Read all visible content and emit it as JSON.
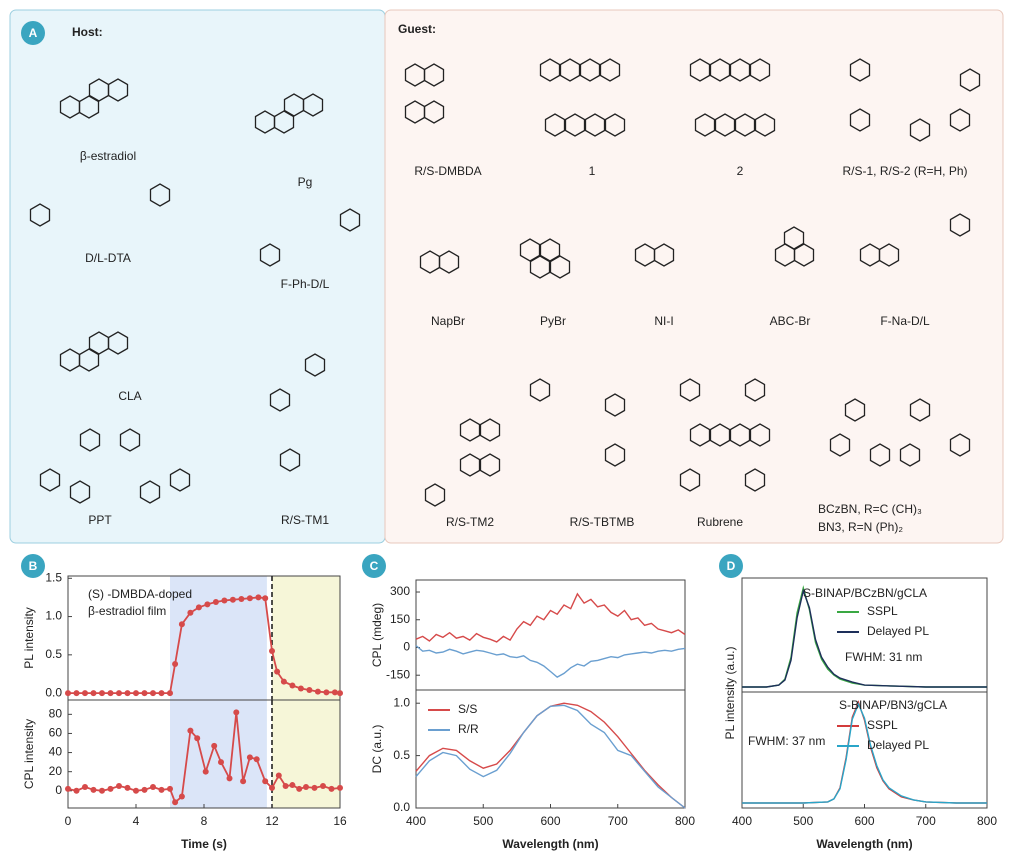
{
  "panel_a": {
    "label": "A",
    "host": {
      "title": "Host:",
      "molecules": [
        "β-estradiol",
        "Pg",
        "D/L-DTA",
        "F-Ph-D/L",
        "CLA",
        "PPT",
        "R/S-TM1"
      ]
    },
    "guest": {
      "title": "Guest:",
      "molecules": [
        "R/S-DMBDA",
        "1",
        "2",
        "R/S-1, R/S-2 (R=H, Ph)",
        "NapBr",
        "PyBr",
        "NI-I",
        "ABC-Br",
        "F-Na-D/L",
        "R/S-TM2",
        "R/S-TBTMB",
        "Rubrene",
        "BCzBN, R=C (CH)₃",
        "BN3, R=N (Ph)₂"
      ]
    }
  },
  "chart_data": [
    {
      "type": "line",
      "panel": "B",
      "ylabel": "PL intensity",
      "annotation": [
        "(S) -DMBDA-doped",
        "β-estradiol film"
      ],
      "markers": true,
      "x": [
        0,
        0.5,
        1,
        1.5,
        2,
        2.5,
        3,
        3.5,
        4,
        4.5,
        5,
        5.5,
        6,
        6.3,
        6.7,
        7.2,
        7.7,
        8.2,
        8.7,
        9.2,
        9.7,
        10.2,
        10.7,
        11.2,
        11.6,
        12,
        12.3,
        12.7,
        13.2,
        13.7,
        14.2,
        14.7,
        15.2,
        15.7,
        16
      ],
      "series": [
        {
          "color": "#d64a4a",
          "values": [
            0,
            0,
            0,
            0,
            0,
            0,
            0,
            0,
            0,
            0,
            0,
            0,
            0,
            0.38,
            0.9,
            1.05,
            1.12,
            1.16,
            1.19,
            1.21,
            1.22,
            1.23,
            1.24,
            1.25,
            1.24,
            0.55,
            0.28,
            0.15,
            0.1,
            0.06,
            0.04,
            0.02,
            0.01,
            0.01,
            0
          ]
        }
      ],
      "xlim": [
        0,
        16
      ],
      "ylim": [
        -0.09,
        1.53
      ],
      "yticks": [
        {
          "value": 0,
          "label": "0.0"
        },
        0.5,
        {
          "value": 1,
          "label": "1.0"
        },
        1.5
      ],
      "shaded_regions": [
        {
          "x": [
            6,
            11.7
          ],
          "color": "#dbe5f8"
        },
        {
          "x": [
            12,
            16
          ],
          "color": "#f6f6d8"
        }
      ],
      "vline_x": 12
    },
    {
      "type": "line",
      "ylabel": "CPL intensity",
      "xlabel": "Time (s)",
      "markers": true,
      "x": [
        0,
        0.5,
        1,
        1.5,
        2,
        2.5,
        3,
        3.5,
        4,
        4.5,
        5,
        5.5,
        6,
        6.3,
        6.7,
        7.2,
        7.6,
        8.1,
        8.6,
        9,
        9.5,
        9.9,
        10.3,
        10.7,
        11.1,
        11.6,
        12,
        12.4,
        12.8,
        13.2,
        13.6,
        14,
        14.5,
        15,
        15.5,
        16
      ],
      "series": [
        {
          "color": "#d64a4a",
          "values": [
            2,
            0,
            4,
            1,
            0,
            2,
            5,
            3,
            0,
            1,
            4,
            1,
            2,
            -12,
            -6,
            63,
            55,
            20,
            47,
            30,
            13,
            82,
            10,
            35,
            33,
            10,
            3,
            16,
            5,
            6,
            2,
            4,
            3,
            5,
            2,
            3
          ]
        }
      ],
      "xlim": [
        0,
        16
      ],
      "ylim": [
        -18,
        95
      ],
      "xticks": [
        0,
        4,
        8,
        12,
        16
      ],
      "yticks": [
        0,
        20,
        40,
        60,
        80
      ],
      "shaded_regions": [
        {
          "x": [
            6,
            11.7
          ],
          "color": "#dbe5f8"
        },
        {
          "x": [
            12,
            16
          ],
          "color": "#f6f6d8"
        }
      ],
      "vline_x": 12
    },
    {
      "type": "line",
      "panel": "C",
      "ylabel": "CPL (mdeg)",
      "x": [
        400,
        410,
        420,
        430,
        440,
        450,
        460,
        470,
        480,
        490,
        500,
        510,
        520,
        530,
        540,
        550,
        560,
        570,
        580,
        590,
        600,
        610,
        620,
        630,
        640,
        650,
        660,
        670,
        680,
        690,
        700,
        710,
        720,
        730,
        740,
        750,
        760,
        770,
        780,
        790,
        800
      ],
      "series": [
        {
          "color": "#d64a4a",
          "values": [
            45,
            60,
            35,
            70,
            55,
            80,
            50,
            60,
            40,
            75,
            55,
            45,
            30,
            60,
            40,
            100,
            140,
            120,
            170,
            150,
            200,
            180,
            230,
            210,
            290,
            240,
            260,
            220,
            230,
            190,
            170,
            200,
            150,
            160,
            120,
            130,
            100,
            90,
            80,
            95,
            70
          ]
        },
        {
          "color": "#6a9fd0",
          "values": [
            10,
            -20,
            -15,
            -30,
            -25,
            -10,
            -20,
            -35,
            -25,
            -15,
            -20,
            -30,
            -40,
            -35,
            -50,
            -55,
            -45,
            -70,
            -80,
            -100,
            -130,
            -160,
            -140,
            -110,
            -90,
            -100,
            -75,
            -70,
            -60,
            -50,
            -55,
            -40,
            -35,
            -30,
            -25,
            -30,
            -20,
            -15,
            -20,
            -10,
            -5
          ]
        }
      ],
      "xlim": [
        400,
        800
      ],
      "ylim": [
        -230,
        365
      ],
      "yticks": [
        -150,
        0,
        150,
        300
      ]
    },
    {
      "type": "line",
      "ylabel": "DC (a.u.)",
      "xlabel": "Wavelength (nm)",
      "legend": "upper left",
      "x": [
        400,
        420,
        440,
        460,
        480,
        500,
        520,
        540,
        560,
        580,
        600,
        620,
        640,
        660,
        680,
        700,
        720,
        740,
        760,
        780,
        800
      ],
      "series": [
        {
          "name": "S/S",
          "color": "#d64a4a",
          "values": [
            0.35,
            0.5,
            0.57,
            0.55,
            0.45,
            0.38,
            0.42,
            0.55,
            0.72,
            0.88,
            0.97,
            1.0,
            0.98,
            0.92,
            0.82,
            0.68,
            0.52,
            0.36,
            0.22,
            0.1,
            0.0
          ]
        },
        {
          "name": "R/R",
          "color": "#6a9fd0",
          "values": [
            0.3,
            0.45,
            0.53,
            0.5,
            0.37,
            0.3,
            0.36,
            0.52,
            0.72,
            0.88,
            0.97,
            0.98,
            0.93,
            0.8,
            0.72,
            0.55,
            0.5,
            0.35,
            0.2,
            0.1,
            0.0
          ]
        }
      ],
      "xlim": [
        400,
        800
      ],
      "ylim": [
        0,
        1.126
      ],
      "xticks": [
        400,
        500,
        600,
        700,
        800
      ],
      "yticks": [
        {
          "value": 0,
          "label": "0.0"
        },
        0.5,
        {
          "value": 1,
          "label": "1.0"
        }
      ]
    },
    {
      "type": "line",
      "panel": "D",
      "title": "S-BINAP/BCzBN/gCLA",
      "annotation": [
        "FWHM: 31 nm"
      ],
      "ylabel": "PL intensity (a.u.)",
      "legend": "upper right",
      "x": [
        400,
        440,
        460,
        470,
        480,
        490,
        500,
        510,
        520,
        530,
        540,
        550,
        560,
        580,
        600,
        650,
        700,
        800
      ],
      "series": [
        {
          "name": "SSPL",
          "color": "#3aa843",
          "values": [
            0,
            0,
            0.02,
            0.08,
            0.3,
            0.75,
            1.0,
            0.78,
            0.45,
            0.28,
            0.18,
            0.12,
            0.08,
            0.04,
            0.02,
            0.01,
            0,
            0
          ]
        },
        {
          "name": "Delayed PL",
          "color": "#1d2f5a",
          "values": [
            0,
            0,
            0.02,
            0.07,
            0.27,
            0.7,
            0.97,
            0.8,
            0.48,
            0.3,
            0.2,
            0.13,
            0.09,
            0.05,
            0.02,
            0.01,
            0,
            0
          ]
        }
      ],
      "xlim": [
        400,
        800
      ],
      "ylim": [
        -0.05,
        1.1
      ]
    },
    {
      "type": "line",
      "title": "S-BINAP/BN3/gCLA",
      "annotation": [
        "FWHM: 37 nm"
      ],
      "xlabel": "Wavelength (nm)",
      "legend": "upper right",
      "x": [
        400,
        500,
        540,
        550,
        560,
        570,
        580,
        590,
        600,
        610,
        620,
        630,
        640,
        660,
        680,
        700,
        750,
        800
      ],
      "series": [
        {
          "name": "SSPL",
          "color": "#d33b3b",
          "values": [
            0,
            0,
            0.01,
            0.04,
            0.15,
            0.45,
            0.85,
            1.0,
            0.82,
            0.55,
            0.35,
            0.22,
            0.14,
            0.06,
            0.03,
            0.01,
            0,
            0
          ]
        },
        {
          "name": "Delayed PL",
          "color": "#2aa5c8",
          "values": [
            0,
            0,
            0.01,
            0.04,
            0.14,
            0.43,
            0.83,
            0.98,
            0.84,
            0.57,
            0.37,
            0.23,
            0.15,
            0.07,
            0.03,
            0.01,
            0,
            0
          ]
        }
      ],
      "xlim": [
        400,
        800
      ],
      "ylim": [
        -0.05,
        1.1
      ],
      "xticks": [
        400,
        500,
        600,
        700,
        800
      ]
    }
  ]
}
